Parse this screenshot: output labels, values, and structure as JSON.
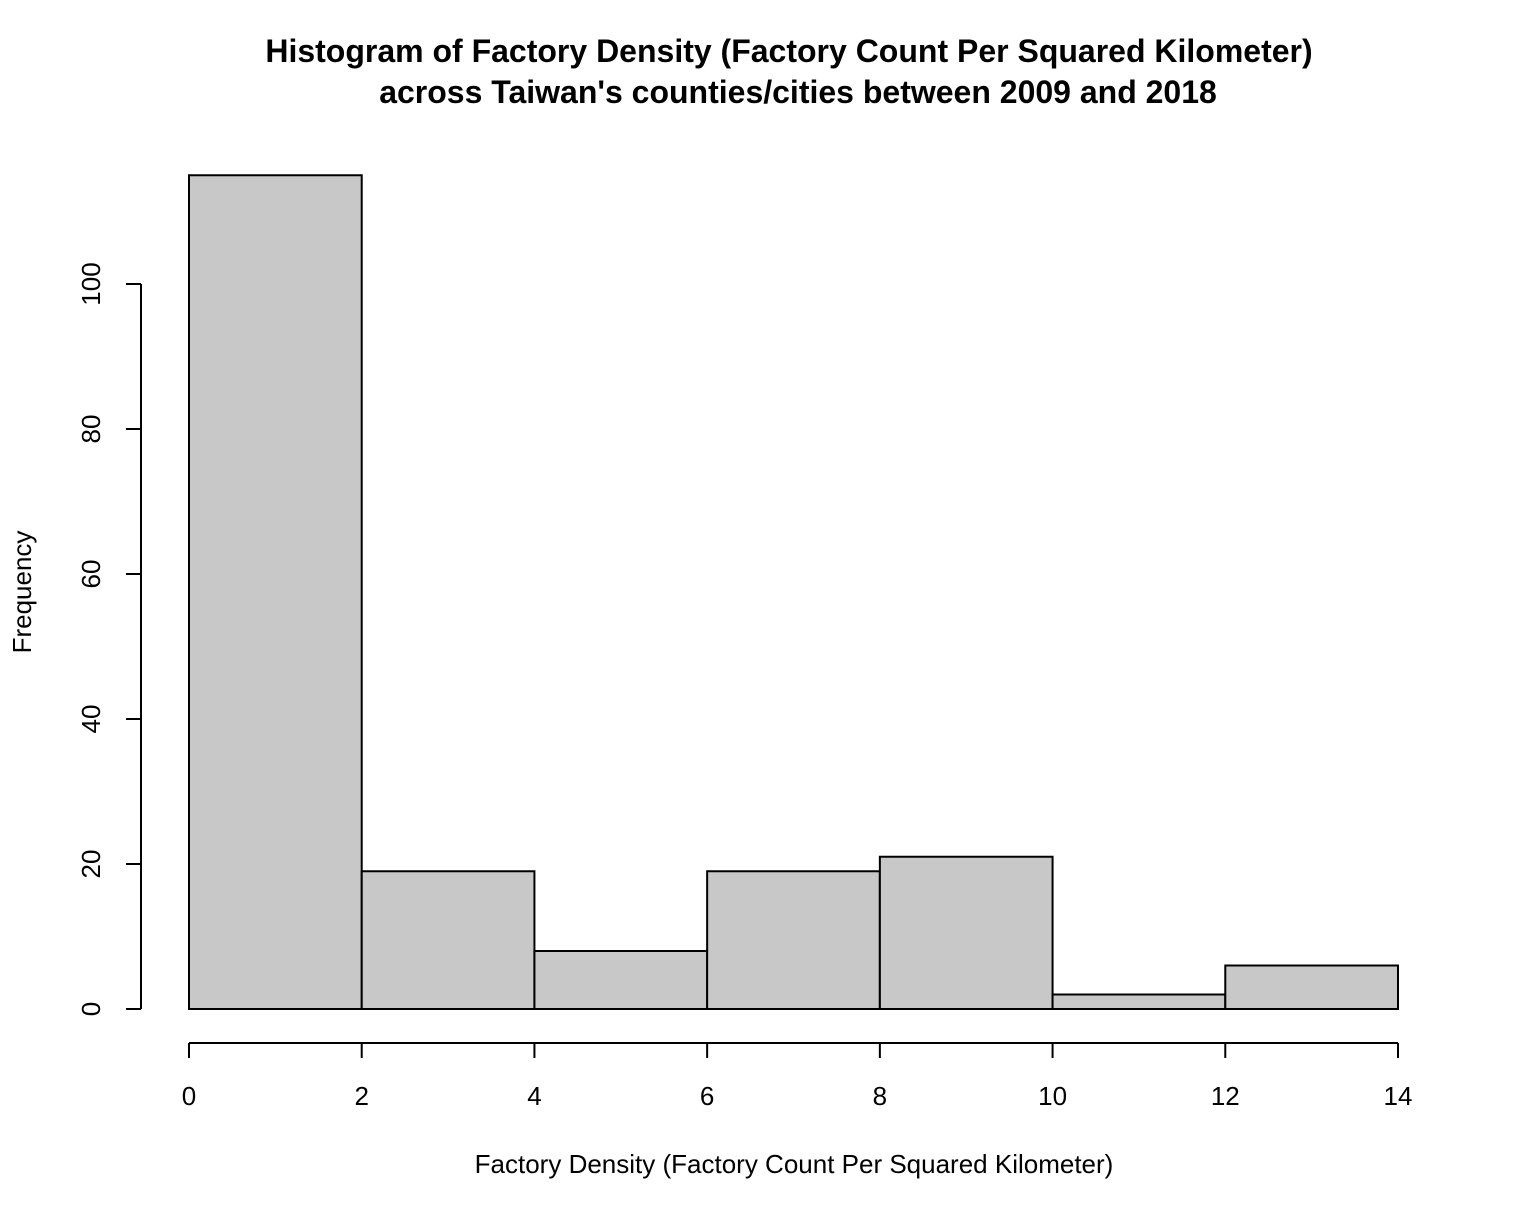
{
  "chart_data": {
    "type": "bar",
    "title": [
      "Histogram of Factory Density (Factory Count Per Squared Kilometer)",
      "across Taiwan's counties/cities between 2009 and 2018"
    ],
    "xlabel": "Factory Density (Factory Count Per Squared Kilometer)",
    "ylabel": "Frequency",
    "bins": [
      {
        "from": 0,
        "to": 2,
        "count": 115
      },
      {
        "from": 2,
        "to": 4,
        "count": 19
      },
      {
        "from": 4,
        "to": 6,
        "count": 8
      },
      {
        "from": 6,
        "to": 8,
        "count": 19
      },
      {
        "from": 8,
        "to": 10,
        "count": 21
      },
      {
        "from": 10,
        "to": 12,
        "count": 2
      },
      {
        "from": 12,
        "to": 14,
        "count": 6
      }
    ],
    "xticks": [
      0,
      2,
      4,
      6,
      8,
      10,
      12,
      14
    ],
    "yticks": [
      0,
      20,
      40,
      60,
      80,
      100
    ],
    "xlim": [
      0,
      14
    ],
    "ylim": [
      0,
      115
    ],
    "bar_color": "#c8c8c8",
    "grid": false,
    "legend": "none"
  }
}
